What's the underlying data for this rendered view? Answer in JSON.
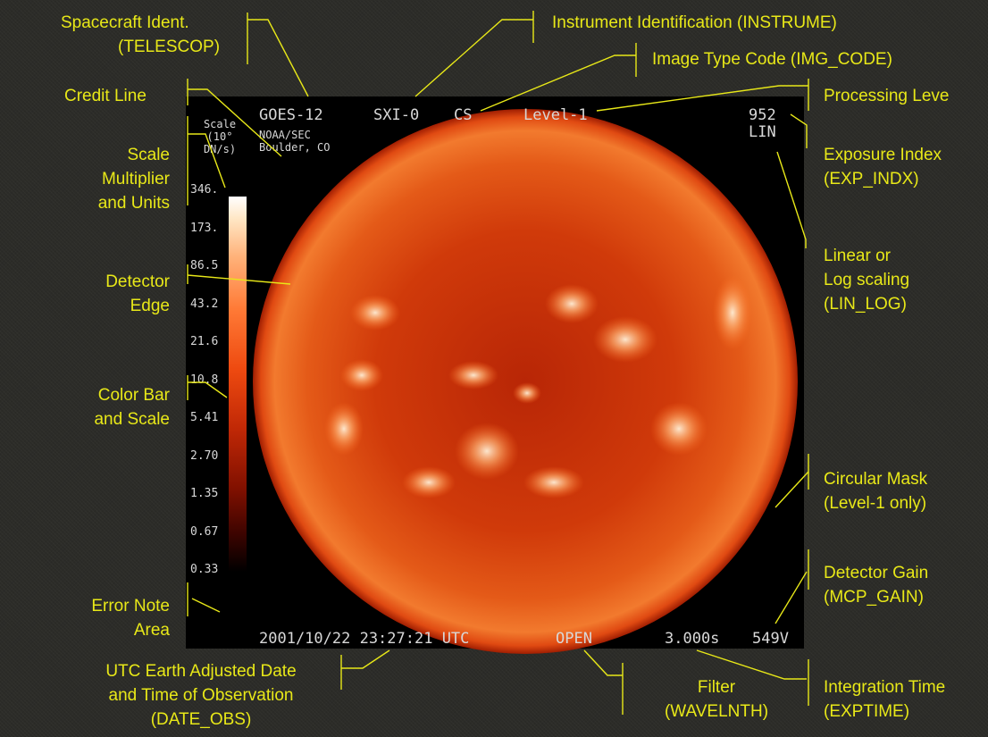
{
  "labels": {
    "spacecraft_ident": [
      "Spacecraft Ident.",
      "(TELESCOP)"
    ],
    "instrument_identification": [
      "Instrument Identification (INSTRUME)"
    ],
    "image_type_code": [
      "Image Type Code (IMG_CODE)"
    ],
    "credit_line": [
      "Credit Line"
    ],
    "processing_level": [
      "Processing Leve"
    ],
    "scale_multiplier": [
      "Scale",
      "Multiplier",
      "and Units"
    ],
    "exposure_index": [
      "Exposure Index",
      "(EXP_INDX)"
    ],
    "linear_log_scaling": [
      "Linear or",
      "Log scaling",
      "(LIN_LOG)"
    ],
    "detector_edge": [
      "Detector",
      "Edge"
    ],
    "color_bar": [
      "Color Bar",
      "and Scale"
    ],
    "circular_mask": [
      "Circular Mask",
      "(Level-1 only)"
    ],
    "detector_gain": [
      "Detector Gain",
      "(MCP_GAIN)"
    ],
    "error_note": [
      "Error Note",
      "Area"
    ],
    "utc_date": [
      "UTC Earth Adjusted Date",
      "and Time of Observation",
      "(DATE_OBS)"
    ],
    "filter": [
      "Filter",
      "(WAVELNTH)"
    ],
    "integration_time": [
      "Integration Time",
      "(EXPTIME)"
    ]
  },
  "image": {
    "telescope": "GOES-12",
    "instrument": "SXI-0",
    "img_code": "CS",
    "level": "Level-1",
    "credit": [
      "NOAA/SEC",
      "Boulder, CO"
    ],
    "scale_title": [
      "Scale",
      "(10°",
      "DN/s)"
    ],
    "exp_index": "952",
    "lin_log": "LIN",
    "date_time": "2001/10/22 23:27:21 UTC",
    "filter": "OPEN",
    "exptime": "3.000s",
    "gain": "549V",
    "scale_ticks": [
      "346.",
      "173.",
      "86.5",
      "43.2",
      "21.6",
      "10.8",
      "5.41",
      "2.70",
      "1.35",
      "0.67",
      "0.33"
    ]
  },
  "colors": {
    "label": "#e8e818",
    "panel": "#000000",
    "overlay_text": "#d8d8d8",
    "sun_core": "#ff7a2a",
    "sun_limb": "#d03608"
  }
}
